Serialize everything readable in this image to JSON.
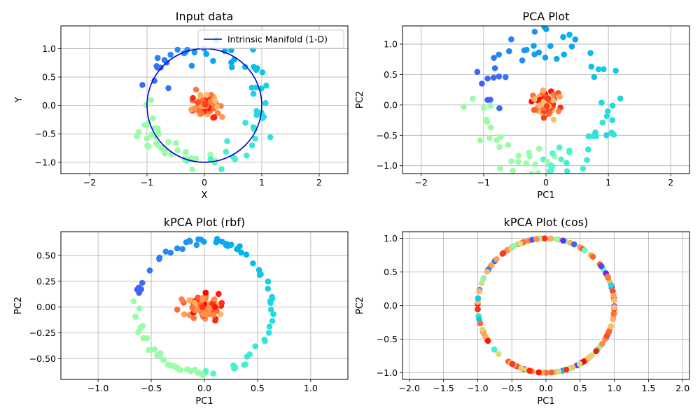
{
  "chart_data": [
    {
      "id": "input",
      "type": "scatter",
      "title": "Input data",
      "xlabel": "X",
      "ylabel": "Y",
      "xlim": [
        -2.5,
        2.5
      ],
      "ylim": [
        -1.2,
        1.4
      ],
      "xticks": [
        -2,
        -1,
        0,
        1,
        2
      ],
      "yticks": [
        -1.0,
        -0.5,
        0.0,
        0.5,
        1.0
      ],
      "xtick_labels": [
        "−2",
        "−1",
        "0",
        "1",
        "2"
      ],
      "ytick_labels": [
        "−1.0",
        "−0.5",
        "0.0",
        "0.5",
        "1.0"
      ],
      "grid": true,
      "shape": "ring-and-blob",
      "ring_radius": 1.0,
      "ring_noise": 0.12,
      "ring_points": 95,
      "blob_center": [
        0.0,
        0.0
      ],
      "blob_spread": [
        0.12,
        0.1
      ],
      "blob_points": 70,
      "manifold": {
        "name": "Intrinsic Manifold (1-D)",
        "type": "circle",
        "radius": 1.0,
        "color": "#0000cc"
      },
      "legend": {
        "position": "top-right",
        "entries": [
          "Intrinsic Manifold (1-D)"
        ]
      }
    },
    {
      "id": "pca",
      "type": "scatter",
      "title": "PCA Plot",
      "xlabel": "PC1",
      "ylabel": "PC2",
      "xlim": [
        -2.3,
        2.3
      ],
      "ylim": [
        -1.13,
        1.3
      ],
      "xticks": [
        -2,
        -1,
        0,
        1,
        2
      ],
      "yticks": [
        -1.0,
        -0.5,
        0.0,
        0.5,
        1.0
      ],
      "xtick_labels": [
        "−2",
        "−1",
        "0",
        "1",
        "2"
      ],
      "ytick_labels": [
        "−1.0",
        "−0.5",
        "0.0",
        "0.5",
        "1.0"
      ],
      "grid": true,
      "shape": "ring-and-blob",
      "ring_radius": 1.0,
      "ring_noise": 0.14,
      "ring_points": 95,
      "blob_center": [
        0.0,
        0.0
      ],
      "blob_spread": [
        0.11,
        0.1
      ],
      "blob_points": 70
    },
    {
      "id": "kpca_rbf",
      "type": "scatter",
      "title": "kPCA Plot (rbf)",
      "xlabel": "PC1",
      "ylabel": "PC2",
      "xlim": [
        -1.35,
        1.35
      ],
      "ylim": [
        -0.7,
        0.73
      ],
      "xticks": [
        -1.0,
        -0.5,
        0.0,
        0.5,
        1.0
      ],
      "yticks": [
        -0.5,
        -0.25,
        0.0,
        0.25,
        0.5
      ],
      "xtick_labels": [
        "−1.0",
        "−0.5",
        "0.0",
        "0.5",
        "1.0"
      ],
      "ytick_labels": [
        "−0.50",
        "−0.25",
        "0.00",
        "0.25",
        "0.50"
      ],
      "grid": true,
      "shape": "ring-and-blob",
      "ring_radius_x": 0.63,
      "ring_radius_y": 0.64,
      "ring_noise": 0.03,
      "ring_points": 95,
      "blob_center": [
        0.0,
        0.0
      ],
      "blob_spread": [
        0.1,
        0.06
      ],
      "blob_points": 70
    },
    {
      "id": "kpca_cos",
      "type": "scatter",
      "title": "kPCA Plot (cos)",
      "xlabel": "PC1",
      "ylabel": "PC2",
      "xlim": [
        -2.1,
        2.1
      ],
      "ylim": [
        -1.1,
        1.1
      ],
      "xticks": [
        -2.0,
        -1.5,
        -1.0,
        -0.5,
        0.0,
        0.5,
        1.0,
        1.5,
        2.0
      ],
      "yticks": [
        -1.0,
        -0.5,
        0.0,
        0.5,
        1.0
      ],
      "xtick_labels": [
        "−2.0",
        "−1.5",
        "−1.0",
        "−0.5",
        "0.0",
        "0.5",
        "1.0",
        "1.5",
        "2.0"
      ],
      "ytick_labels": [
        "−1.0",
        "−0.5",
        "0.0",
        "0.5",
        "1.0"
      ],
      "grid": true,
      "shape": "unit-circle",
      "ring_radius": 1.0,
      "ring_points": 165
    }
  ],
  "colormap": "rainbow"
}
